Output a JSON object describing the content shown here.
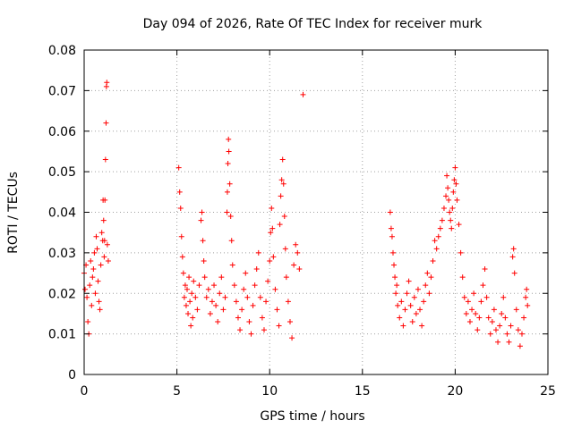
{
  "chart_data": {
    "type": "scatter",
    "title": "Day 094 of 2026, Rate Of TEC Index for receiver murk",
    "xlabel": "GPS time / hours",
    "ylabel": "ROTI / TECUs",
    "xlim": [
      0,
      25
    ],
    "ylim": [
      0,
      0.08
    ],
    "xticks": [
      0,
      5,
      10,
      15,
      20,
      25
    ],
    "yticks": [
      0,
      0.01,
      0.02,
      0.03,
      0.04,
      0.05,
      0.06,
      0.07,
      0.08
    ],
    "grid": true,
    "marker": "+",
    "colors": {
      "points": "#ff0000",
      "grid": "#a0a0a0",
      "frame": "#000000"
    },
    "series": [
      {
        "points": [
          [
            0.0,
            0.025
          ],
          [
            0.05,
            0.021
          ],
          [
            0.1,
            0.027
          ],
          [
            0.15,
            0.019
          ],
          [
            0.2,
            0.013
          ],
          [
            0.25,
            0.01
          ],
          [
            0.3,
            0.022
          ],
          [
            0.35,
            0.028
          ],
          [
            0.4,
            0.017
          ],
          [
            0.45,
            0.024
          ],
          [
            0.5,
            0.026
          ],
          [
            0.55,
            0.03
          ],
          [
            0.6,
            0.02
          ],
          [
            0.65,
            0.034
          ],
          [
            0.7,
            0.031
          ],
          [
            0.75,
            0.023
          ],
          [
            0.8,
            0.018
          ],
          [
            0.85,
            0.016
          ],
          [
            0.9,
            0.027
          ],
          [
            0.95,
            0.035
          ],
          [
            1.0,
            0.033
          ],
          [
            1.02,
            0.043
          ],
          [
            1.05,
            0.038
          ],
          [
            1.08,
            0.029
          ],
          [
            1.1,
            0.033
          ],
          [
            1.12,
            0.043
          ],
          [
            1.15,
            0.053
          ],
          [
            1.18,
            0.062
          ],
          [
            1.2,
            0.071
          ],
          [
            1.22,
            0.072
          ],
          [
            1.25,
            0.032
          ],
          [
            1.3,
            0.028
          ],
          [
            5.1,
            0.051
          ],
          [
            5.15,
            0.045
          ],
          [
            5.2,
            0.041
          ],
          [
            5.25,
            0.034
          ],
          [
            5.3,
            0.029
          ],
          [
            5.35,
            0.025
          ],
          [
            5.4,
            0.019
          ],
          [
            5.45,
            0.022
          ],
          [
            5.5,
            0.017
          ],
          [
            5.55,
            0.021
          ],
          [
            5.6,
            0.015
          ],
          [
            5.65,
            0.024
          ],
          [
            5.7,
            0.018
          ],
          [
            5.75,
            0.012
          ],
          [
            5.8,
            0.02
          ],
          [
            5.85,
            0.014
          ],
          [
            5.9,
            0.023
          ],
          [
            6.0,
            0.019
          ],
          [
            6.1,
            0.016
          ],
          [
            6.2,
            0.022
          ],
          [
            6.3,
            0.038
          ],
          [
            6.35,
            0.04
          ],
          [
            6.4,
            0.033
          ],
          [
            6.45,
            0.028
          ],
          [
            6.5,
            0.024
          ],
          [
            6.6,
            0.019
          ],
          [
            6.7,
            0.021
          ],
          [
            6.8,
            0.015
          ],
          [
            6.9,
            0.018
          ],
          [
            7.0,
            0.022
          ],
          [
            7.1,
            0.017
          ],
          [
            7.2,
            0.013
          ],
          [
            7.3,
            0.02
          ],
          [
            7.4,
            0.024
          ],
          [
            7.5,
            0.016
          ],
          [
            7.6,
            0.019
          ],
          [
            7.7,
            0.04
          ],
          [
            7.72,
            0.045
          ],
          [
            7.75,
            0.052
          ],
          [
            7.78,
            0.058
          ],
          [
            7.8,
            0.055
          ],
          [
            7.85,
            0.047
          ],
          [
            7.9,
            0.039
          ],
          [
            7.95,
            0.033
          ],
          [
            8.0,
            0.027
          ],
          [
            8.1,
            0.022
          ],
          [
            8.2,
            0.018
          ],
          [
            8.3,
            0.014
          ],
          [
            8.4,
            0.011
          ],
          [
            8.5,
            0.016
          ],
          [
            8.6,
            0.021
          ],
          [
            8.7,
            0.025
          ],
          [
            8.8,
            0.019
          ],
          [
            8.9,
            0.013
          ],
          [
            9.0,
            0.01
          ],
          [
            9.1,
            0.017
          ],
          [
            9.2,
            0.022
          ],
          [
            9.3,
            0.026
          ],
          [
            9.4,
            0.03
          ],
          [
            9.5,
            0.019
          ],
          [
            9.6,
            0.014
          ],
          [
            9.7,
            0.011
          ],
          [
            9.8,
            0.018
          ],
          [
            9.9,
            0.023
          ],
          [
            10.0,
            0.028
          ],
          [
            10.05,
            0.035
          ],
          [
            10.1,
            0.041
          ],
          [
            10.15,
            0.036
          ],
          [
            10.2,
            0.029
          ],
          [
            10.3,
            0.021
          ],
          [
            10.4,
            0.016
          ],
          [
            10.5,
            0.012
          ],
          [
            10.55,
            0.037
          ],
          [
            10.6,
            0.044
          ],
          [
            10.65,
            0.048
          ],
          [
            10.7,
            0.053
          ],
          [
            10.75,
            0.047
          ],
          [
            10.8,
            0.039
          ],
          [
            10.85,
            0.031
          ],
          [
            10.9,
            0.024
          ],
          [
            11.0,
            0.018
          ],
          [
            11.1,
            0.013
          ],
          [
            11.2,
            0.009
          ],
          [
            11.3,
            0.027
          ],
          [
            11.4,
            0.032
          ],
          [
            11.5,
            0.03
          ],
          [
            11.6,
            0.026
          ],
          [
            11.8,
            0.069
          ],
          [
            16.5,
            0.04
          ],
          [
            16.55,
            0.036
          ],
          [
            16.6,
            0.034
          ],
          [
            16.65,
            0.03
          ],
          [
            16.7,
            0.027
          ],
          [
            16.75,
            0.024
          ],
          [
            16.8,
            0.02
          ],
          [
            16.85,
            0.022
          ],
          [
            16.9,
            0.017
          ],
          [
            17.0,
            0.014
          ],
          [
            17.1,
            0.018
          ],
          [
            17.2,
            0.012
          ],
          [
            17.3,
            0.016
          ],
          [
            17.4,
            0.02
          ],
          [
            17.5,
            0.023
          ],
          [
            17.6,
            0.017
          ],
          [
            17.7,
            0.013
          ],
          [
            17.8,
            0.019
          ],
          [
            17.9,
            0.015
          ],
          [
            18.0,
            0.021
          ],
          [
            18.1,
            0.016
          ],
          [
            18.2,
            0.012
          ],
          [
            18.3,
            0.018
          ],
          [
            18.4,
            0.022
          ],
          [
            18.5,
            0.025
          ],
          [
            18.6,
            0.02
          ],
          [
            18.7,
            0.024
          ],
          [
            18.8,
            0.028
          ],
          [
            18.9,
            0.033
          ],
          [
            19.0,
            0.031
          ],
          [
            19.1,
            0.034
          ],
          [
            19.2,
            0.036
          ],
          [
            19.3,
            0.038
          ],
          [
            19.4,
            0.041
          ],
          [
            19.5,
            0.044
          ],
          [
            19.55,
            0.049
          ],
          [
            19.6,
            0.046
          ],
          [
            19.65,
            0.043
          ],
          [
            19.7,
            0.04
          ],
          [
            19.75,
            0.038
          ],
          [
            19.8,
            0.036
          ],
          [
            19.85,
            0.041
          ],
          [
            19.9,
            0.045
          ],
          [
            19.95,
            0.048
          ],
          [
            20.0,
            0.051
          ],
          [
            20.05,
            0.047
          ],
          [
            20.1,
            0.043
          ],
          [
            20.2,
            0.037
          ],
          [
            20.3,
            0.03
          ],
          [
            20.4,
            0.024
          ],
          [
            20.5,
            0.019
          ],
          [
            20.6,
            0.015
          ],
          [
            20.7,
            0.018
          ],
          [
            20.8,
            0.013
          ],
          [
            20.9,
            0.016
          ],
          [
            21.0,
            0.02
          ],
          [
            21.1,
            0.015
          ],
          [
            21.2,
            0.011
          ],
          [
            21.3,
            0.014
          ],
          [
            21.4,
            0.018
          ],
          [
            21.5,
            0.022
          ],
          [
            21.6,
            0.026
          ],
          [
            21.7,
            0.019
          ],
          [
            21.8,
            0.014
          ],
          [
            21.9,
            0.01
          ],
          [
            22.0,
            0.013
          ],
          [
            22.1,
            0.016
          ],
          [
            22.2,
            0.011
          ],
          [
            22.3,
            0.008
          ],
          [
            22.4,
            0.012
          ],
          [
            22.5,
            0.015
          ],
          [
            22.6,
            0.019
          ],
          [
            22.7,
            0.014
          ],
          [
            22.8,
            0.01
          ],
          [
            22.9,
            0.008
          ],
          [
            23.0,
            0.012
          ],
          [
            23.1,
            0.029
          ],
          [
            23.15,
            0.031
          ],
          [
            23.2,
            0.025
          ],
          [
            23.3,
            0.016
          ],
          [
            23.4,
            0.011
          ],
          [
            23.5,
            0.007
          ],
          [
            23.6,
            0.01
          ],
          [
            23.7,
            0.014
          ],
          [
            23.8,
            0.019
          ],
          [
            23.85,
            0.021
          ],
          [
            23.9,
            0.017
          ]
        ]
      }
    ]
  }
}
